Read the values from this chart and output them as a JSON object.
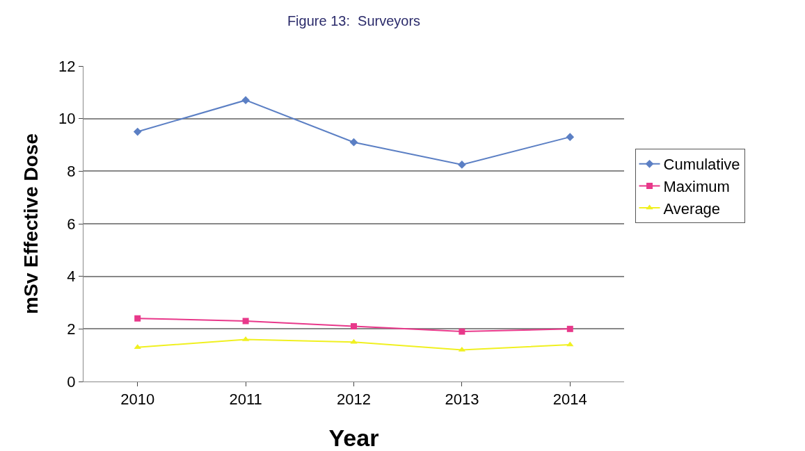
{
  "chart_data": {
    "type": "line",
    "title": "Figure 13:  Surveyors",
    "xlabel": "Year",
    "ylabel": "mSv Effective Dose",
    "categories": [
      "2010",
      "2011",
      "2012",
      "2013",
      "2014"
    ],
    "series": [
      {
        "name": "Cumulative",
        "color": "#5b7fc4",
        "marker": "diamond",
        "values": [
          9.5,
          10.7,
          9.1,
          8.25,
          9.3
        ]
      },
      {
        "name": "Maximum",
        "color": "#e8388a",
        "marker": "square",
        "values": [
          2.4,
          2.3,
          2.1,
          1.9,
          2.0
        ]
      },
      {
        "name": "Average",
        "color": "#f0f020",
        "marker": "triangle",
        "values": [
          1.3,
          1.6,
          1.5,
          1.2,
          1.4
        ]
      }
    ],
    "ylim": [
      0,
      12
    ],
    "yticks": [
      0,
      2,
      4,
      6,
      8,
      10,
      12
    ],
    "grid": "y",
    "legend": "right",
    "line_style": "solid"
  }
}
